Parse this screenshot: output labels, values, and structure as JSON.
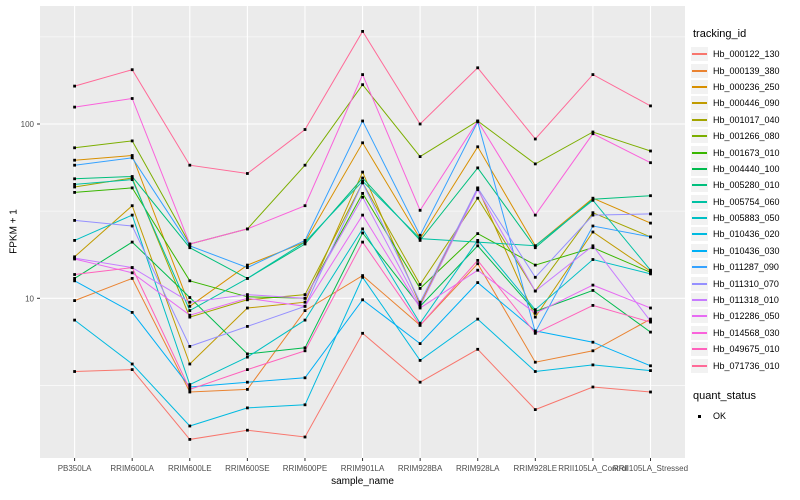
{
  "figure": {
    "background": "#ffffff",
    "panel_background": "#ebebeb",
    "grid_color": "#ffffff",
    "axis_text_color": "#4d4d4d",
    "tick_color": "#333333"
  },
  "chart_data": {
    "type": "line",
    "title": "",
    "xlabel": "sample_name",
    "ylabel": "FPKM + 1",
    "y_scale": "log10",
    "ylim": [
      1.2,
      475
    ],
    "grid": true,
    "legend_position": "right",
    "y_ticks": [
      {
        "value": 10,
        "label": "10"
      },
      {
        "value": 100,
        "label": "100"
      }
    ],
    "y_minor_breaks": [
      3.162,
      31.623,
      316.23
    ],
    "categories": [
      "PB350LA",
      "RRIM600LA",
      "RRIM600LE",
      "RRIM600SE",
      "RRIM600PE",
      "RRIM901LA",
      "RRIM928BA",
      "RRIM928LA",
      "RRIM928LE",
      "RRII105LA_Control",
      "RRII105LA_Stressed"
    ],
    "marker": {
      "shape": "square",
      "color": "#000000",
      "size": 2.8
    },
    "series_legend_title": "tracking_id",
    "series": [
      {
        "name": "Hb_000122_130",
        "color": "#F8766D",
        "values": [
          3.8,
          3.9,
          1.55,
          1.75,
          1.6,
          6.3,
          3.3,
          5.1,
          2.3,
          3.1,
          2.9
        ]
      },
      {
        "name": "Hb_000139_380",
        "color": "#EA8331",
        "values": [
          9.7,
          13,
          2.9,
          3.0,
          8.5,
          13.5,
          7.0,
          15.8,
          4.3,
          5.0,
          7.6
        ]
      },
      {
        "name": "Hb_000236_250",
        "color": "#D89000",
        "values": [
          62,
          66,
          9.0,
          15.5,
          21,
          78,
          22,
          74,
          20,
          37.5,
          27
        ]
      },
      {
        "name": "Hb_000446_090",
        "color": "#C09B00",
        "values": [
          17.3,
          34,
          4.2,
          8.8,
          9.5,
          53,
          9.2,
          43,
          7.8,
          24,
          14.3
        ]
      },
      {
        "name": "Hb_001017_040",
        "color": "#A3A500",
        "values": [
          43.5,
          49,
          7.8,
          9.8,
          10.5,
          46,
          12,
          37.5,
          11,
          31,
          22.5
        ]
      },
      {
        "name": "Hb_001266_080",
        "color": "#7CAE00",
        "values": [
          73,
          80,
          20.5,
          25,
          58,
          168,
          65,
          104,
          59,
          90,
          70
        ]
      },
      {
        "name": "Hb_001673_010",
        "color": "#39B600",
        "values": [
          40.5,
          43,
          12.6,
          10.2,
          10,
          40,
          11.4,
          23.5,
          15.5,
          19.5,
          14.1
        ]
      },
      {
        "name": "Hb_004440_100",
        "color": "#00BB4E",
        "values": [
          13,
          21,
          10.1,
          4.8,
          5.2,
          23.7,
          9.0,
          20,
          8.4,
          11.1,
          6.4
        ]
      },
      {
        "name": "Hb_005280_010",
        "color": "#00BF7D",
        "values": [
          48.5,
          50,
          19.5,
          13,
          20.5,
          49,
          21.5,
          56,
          19.5,
          37,
          38.8
        ]
      },
      {
        "name": "Hb_005754_060",
        "color": "#00C1A3",
        "values": [
          45,
          48,
          8.5,
          13,
          21,
          47,
          22,
          21,
          20,
          36.5,
          14.5
        ]
      },
      {
        "name": "Hb_005883_050",
        "color": "#00BFC4",
        "values": [
          21.5,
          30,
          3.2,
          4.6,
          7.5,
          25,
          7.2,
          21.5,
          8.6,
          16.7,
          13.8
        ]
      },
      {
        "name": "Hb_010436_020",
        "color": "#00BAE0",
        "values": [
          7.5,
          4.2,
          1.85,
          2.35,
          2.45,
          13.2,
          4.4,
          7.6,
          3.8,
          4.15,
          3.85
        ]
      },
      {
        "name": "Hb_010436_030",
        "color": "#00B0F6",
        "values": [
          12.6,
          8.3,
          3.1,
          3.3,
          3.5,
          9.8,
          5.5,
          12.3,
          6.5,
          5.6,
          4.1
        ]
      },
      {
        "name": "Hb_011287_090",
        "color": "#35A2FF",
        "values": [
          58,
          64,
          20,
          15,
          21.5,
          104,
          23,
          103,
          6.4,
          26,
          22.5
        ]
      },
      {
        "name": "Hb_011310_070",
        "color": "#9590FF",
        "values": [
          28,
          26,
          5.3,
          6.9,
          9.0,
          46,
          9.5,
          43,
          13.2,
          30,
          30.5
        ]
      },
      {
        "name": "Hb_011318_010",
        "color": "#C77CFF",
        "values": [
          17,
          15,
          9.5,
          10.5,
          10,
          38,
          9.0,
          42,
          11,
          20,
          7.4
        ]
      },
      {
        "name": "Hb_012286_050",
        "color": "#E76BF3",
        "values": [
          16.8,
          14,
          8.0,
          10,
          9.0,
          30,
          8.8,
          14.5,
          8.2,
          11.9,
          8.8
        ]
      },
      {
        "name": "Hb_014568_030",
        "color": "#FA62DB",
        "values": [
          125,
          140,
          20.5,
          25,
          34,
          192,
          32,
          104,
          30,
          88,
          60
        ]
      },
      {
        "name": "Hb_049675_010",
        "color": "#FF62BC",
        "values": [
          13.7,
          15,
          3.0,
          3.9,
          5.0,
          21,
          7.0,
          16.5,
          6.3,
          9.1,
          7.3
        ]
      },
      {
        "name": "Hb_071736_010",
        "color": "#FF6A98",
        "values": [
          165,
          205,
          58,
          52,
          93,
          340,
          100,
          210,
          82,
          192,
          127
        ]
      }
    ],
    "quant_legend": {
      "title": "quant_status",
      "items": [
        {
          "label": "OK",
          "marker": "black-square"
        }
      ]
    }
  }
}
